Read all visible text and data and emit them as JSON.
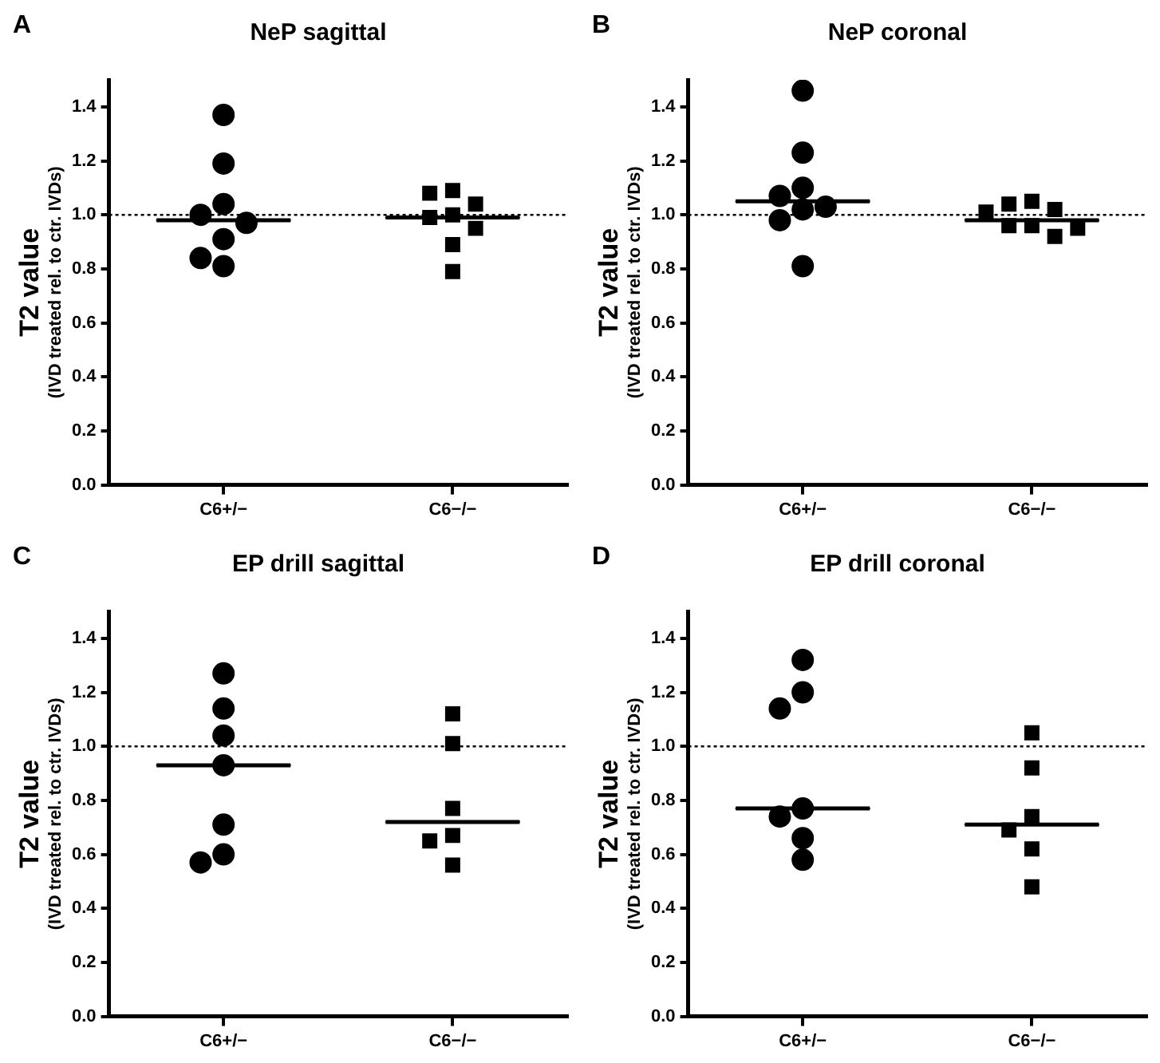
{
  "chart_data": [
    {
      "type": "scatter",
      "title": "NeP sagittal",
      "ylabel": "T2 value\n(IVD treated rel. to ctr. IVDs)",
      "annotations": [
        "A"
      ],
      "categories": [
        "C6+/−",
        "C6−/−"
      ],
      "ylim": [
        0,
        1.5
      ],
      "yticks": [
        {
          "value": 0,
          "label": "0.0"
        },
        {
          "value": 0.2,
          "label": "0.2"
        },
        {
          "value": 0.4,
          "label": "0.4"
        },
        {
          "value": 0.6,
          "label": "0.6"
        },
        {
          "value": 0.8,
          "label": "0.8"
        },
        {
          "value": 1,
          "label": "1.0"
        },
        {
          "value": 1.2,
          "label": "1.2"
        },
        {
          "value": 1.4,
          "label": "1.4"
        }
      ],
      "grid": false,
      "legend": false,
      "ref_lines": [
        {
          "axis": "y",
          "value": 1,
          "line_style": "dotted",
          "color": "#000000"
        }
      ],
      "series": [
        {
          "type": "scatter",
          "marker": "circle",
          "color": "#000000",
          "x": [
            "C6+/−",
            "C6+/−",
            "C6+/−",
            "C6+/−",
            "C6+/−",
            "C6+/−",
            "C6+/−",
            "C6+/−"
          ],
          "values": [
            1.37,
            1.19,
            1.04,
            1.0,
            0.97,
            0.91,
            0.84,
            0.81
          ]
        },
        {
          "type": "scatter",
          "marker": "square",
          "color": "#000000",
          "x": [
            "C6−/−",
            "C6−/−",
            "C6−/−",
            "C6−/−",
            "C6−/−",
            "C6−/−",
            "C6−/−",
            "C6−/−"
          ],
          "values": [
            1.09,
            1.08,
            1.04,
            1.0,
            0.99,
            0.95,
            0.89,
            0.79
          ]
        },
        {
          "type": "box",
          "color": "#000000",
          "boxes": [
            {
              "low": 0.98,
              "q1": 0.98,
              "median": 0.98,
              "q3": 0.98,
              "high": 0.98
            },
            {
              "low": 0.99,
              "q1": 0.99,
              "median": 0.99,
              "q3": 0.99,
              "high": 0.99
            }
          ]
        }
      ]
    },
    {
      "type": "scatter",
      "title": "NeP coronal",
      "ylabel": "T2 value\n(IVD treated rel. to ctr. IVDs)",
      "annotations": [
        "B"
      ],
      "categories": [
        "C6+/−",
        "C6−/−"
      ],
      "ylim": [
        0,
        1.5
      ],
      "yticks": [
        {
          "value": 0,
          "label": "0.0"
        },
        {
          "value": 0.2,
          "label": "0.2"
        },
        {
          "value": 0.4,
          "label": "0.4"
        },
        {
          "value": 0.6,
          "label": "0.6"
        },
        {
          "value": 0.8,
          "label": "0.8"
        },
        {
          "value": 1,
          "label": "1.0"
        },
        {
          "value": 1.2,
          "label": "1.2"
        },
        {
          "value": 1.4,
          "label": "1.4"
        }
      ],
      "grid": false,
      "legend": false,
      "ref_lines": [
        {
          "axis": "y",
          "value": 1,
          "line_style": "dotted",
          "color": "#000000"
        }
      ],
      "series": [
        {
          "type": "scatter",
          "marker": "circle",
          "color": "#000000",
          "x": [
            "C6+/−",
            "C6+/−",
            "C6+/−",
            "C6+/−",
            "C6+/−",
            "C6+/−",
            "C6+/−",
            "C6+/−"
          ],
          "values": [
            1.46,
            1.23,
            1.1,
            1.07,
            1.03,
            1.02,
            0.98,
            0.81
          ]
        },
        {
          "type": "scatter",
          "marker": "square",
          "color": "#000000",
          "x": [
            "C6−/−",
            "C6−/−",
            "C6−/−",
            "C6−/−",
            "C6−/−",
            "C6−/−",
            "C6−/−",
            "C6−/−"
          ],
          "values": [
            1.05,
            1.04,
            1.02,
            1.01,
            0.96,
            0.96,
            0.95,
            0.92
          ]
        },
        {
          "type": "box",
          "color": "#000000",
          "boxes": [
            {
              "low": 1.05,
              "q1": 1.05,
              "median": 1.05,
              "q3": 1.05,
              "high": 1.05
            },
            {
              "low": 0.98,
              "q1": 0.98,
              "median": 0.98,
              "q3": 0.98,
              "high": 0.98
            }
          ]
        }
      ]
    },
    {
      "type": "scatter",
      "title": "EP drill sagittal",
      "ylabel": "T2 value\n(IVD treated rel. to ctr. IVDs)",
      "annotations": [
        "C"
      ],
      "categories": [
        "C6+/−",
        "C6−/−"
      ],
      "ylim": [
        0,
        1.5
      ],
      "yticks": [
        {
          "value": 0,
          "label": "0.0"
        },
        {
          "value": 0.2,
          "label": "0.2"
        },
        {
          "value": 0.4,
          "label": "0.4"
        },
        {
          "value": 0.6,
          "label": "0.6"
        },
        {
          "value": 0.8,
          "label": "0.8"
        },
        {
          "value": 1,
          "label": "1.0"
        },
        {
          "value": 1.2,
          "label": "1.2"
        },
        {
          "value": 1.4,
          "label": "1.4"
        }
      ],
      "grid": false,
      "legend": false,
      "ref_lines": [
        {
          "axis": "y",
          "value": 1,
          "line_style": "dotted",
          "color": "#000000"
        }
      ],
      "series": [
        {
          "type": "scatter",
          "marker": "circle",
          "color": "#000000",
          "x": [
            "C6+/−",
            "C6+/−",
            "C6+/−",
            "C6+/−",
            "C6+/−",
            "C6+/−",
            "C6+/−"
          ],
          "values": [
            1.27,
            1.14,
            1.04,
            0.93,
            0.71,
            0.6,
            0.57
          ]
        },
        {
          "type": "scatter",
          "marker": "square",
          "color": "#000000",
          "x": [
            "C6−/−",
            "C6−/−",
            "C6−/−",
            "C6−/−",
            "C6−/−",
            "C6−/−"
          ],
          "values": [
            1.12,
            1.01,
            0.77,
            0.67,
            0.65,
            0.56
          ]
        },
        {
          "type": "box",
          "color": "#000000",
          "boxes": [
            {
              "low": 0.93,
              "q1": 0.93,
              "median": 0.93,
              "q3": 0.93,
              "high": 0.93
            },
            {
              "low": 0.72,
              "q1": 0.72,
              "median": 0.72,
              "q3": 0.72,
              "high": 0.72
            }
          ]
        }
      ]
    },
    {
      "type": "scatter",
      "title": "EP drill coronal",
      "ylabel": "T2 value\n(IVD treated rel. to ctr. IVDs)",
      "annotations": [
        "D"
      ],
      "categories": [
        "C6+/−",
        "C6−/−"
      ],
      "ylim": [
        0,
        1.5
      ],
      "yticks": [
        {
          "value": 0,
          "label": "0.0"
        },
        {
          "value": 0.2,
          "label": "0.2"
        },
        {
          "value": 0.4,
          "label": "0.4"
        },
        {
          "value": 0.6,
          "label": "0.6"
        },
        {
          "value": 0.8,
          "label": "0.8"
        },
        {
          "value": 1,
          "label": "1.0"
        },
        {
          "value": 1.2,
          "label": "1.2"
        },
        {
          "value": 1.4,
          "label": "1.4"
        }
      ],
      "grid": false,
      "legend": false,
      "ref_lines": [
        {
          "axis": "y",
          "value": 1,
          "line_style": "dotted",
          "color": "#000000"
        }
      ],
      "series": [
        {
          "type": "scatter",
          "marker": "circle",
          "color": "#000000",
          "x": [
            "C6+/−",
            "C6+/−",
            "C6+/−",
            "C6+/−",
            "C6+/−",
            "C6+/−",
            "C6+/−"
          ],
          "values": [
            1.32,
            1.2,
            1.14,
            0.77,
            0.74,
            0.66,
            0.58
          ]
        },
        {
          "type": "scatter",
          "marker": "square",
          "color": "#000000",
          "x": [
            "C6−/−",
            "C6−/−",
            "C6−/−",
            "C6−/−",
            "C6−/−",
            "C6−/−"
          ],
          "values": [
            1.05,
            0.92,
            0.74,
            0.69,
            0.62,
            0.48
          ]
        },
        {
          "type": "box",
          "color": "#000000",
          "boxes": [
            {
              "low": 0.77,
              "q1": 0.77,
              "median": 0.77,
              "q3": 0.77,
              "high": 0.77
            },
            {
              "low": 0.71,
              "q1": 0.71,
              "median": 0.71,
              "q3": 0.71,
              "high": 0.71
            }
          ]
        }
      ]
    }
  ]
}
